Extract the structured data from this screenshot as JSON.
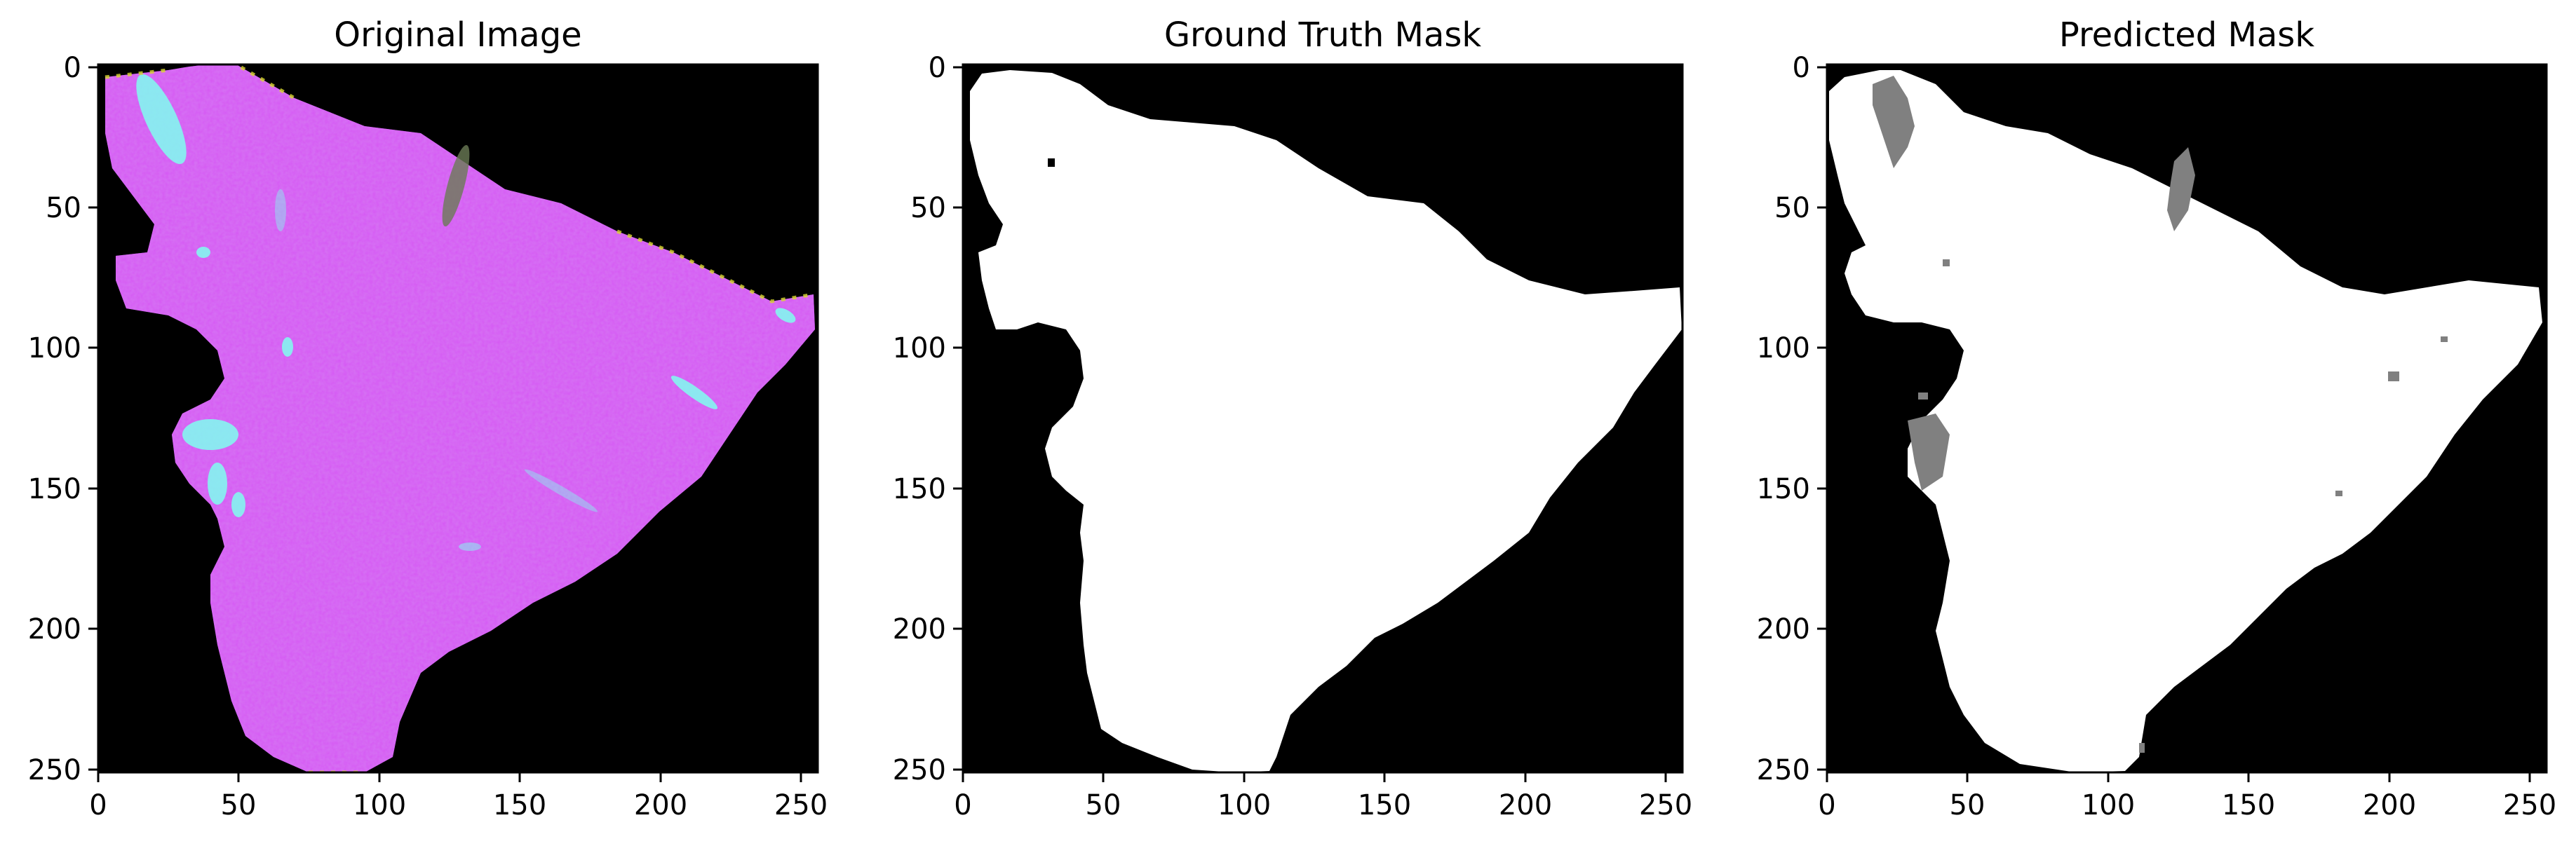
{
  "figure": {
    "background": "#ffffff",
    "panels": [
      {
        "id": "original",
        "title": "Original Image",
        "kind": "rgb-composite",
        "x_ticks": [
          "0",
          "50",
          "100",
          "150",
          "200",
          "250"
        ],
        "y_ticks": [
          "0",
          "50",
          "100",
          "150",
          "200",
          "250"
        ],
        "colors": {
          "background": "#000000",
          "region_base": "#a45cf2",
          "region_magenta": "#ff44ee",
          "region_blue": "#7a5cff",
          "streak_cyan": "#7ffff0",
          "edge_yellow": "#d8d830"
        }
      },
      {
        "id": "ground-truth",
        "title": "Ground Truth Mask",
        "kind": "binary-mask",
        "x_ticks": [
          "0",
          "50",
          "100",
          "150",
          "200",
          "250"
        ],
        "y_ticks": [
          "0",
          "50",
          "100",
          "150",
          "200",
          "250"
        ],
        "colors": {
          "background": "#000000",
          "foreground": "#ffffff"
        }
      },
      {
        "id": "predicted",
        "title": "Predicted Mask",
        "kind": "three-level-mask",
        "x_ticks": [
          "0",
          "50",
          "100",
          "150",
          "200",
          "250"
        ],
        "y_ticks": [
          "0",
          "50",
          "100",
          "150",
          "200",
          "250"
        ],
        "colors": {
          "background": "#000000",
          "foreground": "#ffffff",
          "uncertain": "#808080"
        }
      }
    ]
  }
}
